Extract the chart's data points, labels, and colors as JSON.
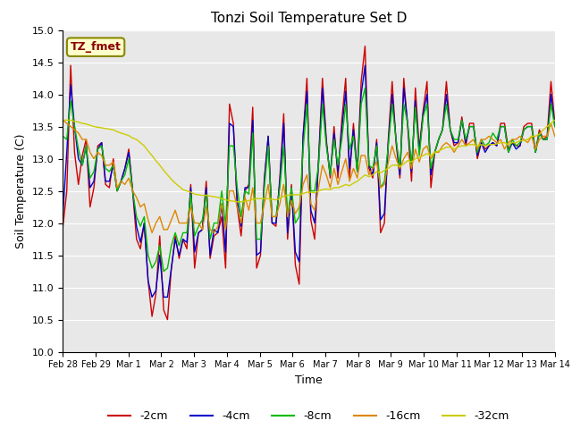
{
  "title": "Tonzi Soil Temperature Set D",
  "xlabel": "Time",
  "ylabel": "Soil Temperature (C)",
  "ylim": [
    10.0,
    15.0
  ],
  "yticks": [
    10.0,
    10.5,
    11.0,
    11.5,
    12.0,
    12.5,
    13.0,
    13.5,
    14.0,
    14.5,
    15.0
  ],
  "xtick_labels": [
    "Feb 28",
    "Feb 29",
    "Mar 1",
    "Mar 2",
    "Mar 3",
    "Mar 4",
    "Mar 5",
    "Mar 6",
    "Mar 7",
    "Mar 8",
    "Mar 9",
    "Mar 10",
    "Mar 11",
    "Mar 12",
    "Mar 13",
    "Mar 14"
  ],
  "colors": {
    "-2cm": "#cc0000",
    "-4cm": "#0000cc",
    "-8cm": "#00bb00",
    "-16cm": "#dd8800",
    "-32cm": "#cccc00"
  },
  "legend_label": "TZ_fmet",
  "plot_bg": "#e8e8e8",
  "fig_bg": "#ffffff",
  "n_days": 16,
  "pts_per_day": 8,
  "series": {
    "-2cm": [
      11.95,
      12.5,
      14.45,
      13.1,
      12.6,
      13.05,
      13.3,
      12.25,
      12.55,
      13.2,
      13.25,
      12.6,
      12.55,
      13.0,
      12.5,
      12.65,
      12.85,
      13.15,
      12.5,
      11.75,
      11.6,
      12.0,
      11.1,
      10.55,
      10.9,
      11.8,
      10.65,
      10.5,
      11.3,
      11.8,
      11.45,
      11.75,
      11.6,
      12.6,
      11.3,
      11.85,
      11.9,
      12.65,
      11.45,
      11.8,
      11.85,
      12.1,
      11.3,
      13.85,
      13.55,
      12.25,
      11.8,
      12.5,
      12.6,
      13.8,
      11.3,
      11.5,
      12.7,
      13.35,
      12.0,
      11.95,
      12.7,
      13.7,
      11.75,
      12.6,
      11.35,
      11.05,
      13.35,
      14.25,
      12.05,
      11.75,
      13.0,
      14.25,
      13.3,
      12.7,
      13.5,
      12.7,
      13.6,
      14.25,
      12.7,
      13.55,
      12.8,
      14.2,
      14.75,
      12.85,
      12.7,
      13.3,
      11.85,
      12.0,
      13.3,
      14.2,
      13.25,
      12.7,
      14.25,
      13.5,
      12.65,
      14.1,
      13.15,
      13.75,
      14.2,
      12.55,
      13.1,
      13.3,
      13.45,
      14.2,
      13.45,
      13.2,
      13.25,
      13.65,
      13.2,
      13.55,
      13.55,
      13.0,
      13.25,
      13.15,
      13.2,
      13.25,
      13.2,
      13.55,
      13.55,
      13.15,
      13.25,
      13.2,
      13.2,
      13.5,
      13.55,
      13.55,
      13.1,
      13.45,
      13.3,
      13.35,
      14.2,
      13.55
    ],
    "-4cm": [
      12.15,
      13.1,
      14.15,
      13.5,
      13.0,
      12.9,
      13.2,
      12.55,
      12.65,
      13.15,
      13.25,
      12.65,
      12.65,
      12.9,
      12.5,
      12.65,
      12.85,
      13.1,
      12.5,
      11.95,
      11.7,
      12.0,
      11.1,
      10.85,
      10.95,
      11.5,
      10.85,
      10.85,
      11.3,
      11.75,
      11.5,
      11.75,
      11.7,
      12.55,
      11.55,
      11.85,
      11.9,
      12.55,
      11.5,
      11.9,
      11.85,
      12.3,
      11.55,
      13.55,
      13.5,
      12.35,
      11.95,
      12.55,
      12.55,
      13.6,
      11.5,
      11.55,
      12.65,
      13.35,
      12.0,
      12.0,
      12.65,
      13.55,
      11.85,
      12.55,
      11.55,
      11.4,
      13.35,
      14.05,
      12.2,
      12.0,
      12.95,
      14.1,
      13.25,
      12.75,
      13.4,
      12.8,
      13.45,
      14.05,
      12.85,
      13.45,
      12.8,
      14.0,
      14.45,
      12.9,
      12.75,
      13.25,
      12.05,
      12.15,
      13.25,
      14.0,
      13.3,
      12.75,
      14.1,
      13.55,
      12.8,
      13.9,
      13.1,
      13.7,
      14.0,
      12.75,
      13.1,
      13.3,
      13.45,
      14.0,
      13.45,
      13.25,
      13.25,
      13.6,
      13.25,
      13.5,
      13.5,
      13.05,
      13.25,
      13.1,
      13.2,
      13.25,
      13.2,
      13.5,
      13.5,
      13.1,
      13.25,
      13.15,
      13.2,
      13.45,
      13.5,
      13.5,
      13.1,
      13.4,
      13.3,
      13.3,
      14.0,
      13.5
    ],
    "-8cm": [
      13.35,
      13.3,
      13.9,
      13.5,
      13.15,
      12.9,
      13.2,
      12.7,
      12.8,
      13.15,
      13.2,
      12.85,
      12.8,
      12.9,
      12.5,
      12.65,
      12.75,
      13.0,
      12.5,
      12.1,
      11.95,
      12.1,
      11.5,
      11.3,
      11.4,
      11.65,
      11.25,
      11.3,
      11.65,
      11.85,
      11.65,
      11.85,
      11.85,
      12.45,
      11.8,
      11.95,
      12.05,
      12.45,
      11.75,
      12.0,
      12.0,
      12.5,
      11.95,
      13.2,
      13.2,
      12.55,
      12.1,
      12.5,
      12.45,
      13.4,
      11.75,
      11.75,
      12.55,
      13.2,
      12.1,
      12.1,
      12.55,
      13.2,
      12.1,
      12.55,
      12.0,
      12.1,
      13.15,
      13.85,
      12.5,
      12.5,
      12.9,
      13.85,
      13.2,
      12.75,
      13.3,
      12.9,
      13.3,
      13.85,
      13.15,
      13.35,
      12.8,
      13.85,
      14.1,
      12.9,
      12.85,
      13.2,
      12.55,
      12.65,
      13.2,
      13.85,
      13.3,
      12.85,
      13.85,
      13.55,
      12.9,
      13.8,
      13.05,
      13.65,
      13.85,
      12.85,
      13.1,
      13.3,
      13.45,
      13.85,
      13.45,
      13.3,
      13.3,
      13.6,
      13.3,
      13.5,
      13.5,
      13.1,
      13.3,
      13.2,
      13.25,
      13.4,
      13.3,
      13.5,
      13.5,
      13.1,
      13.3,
      13.2,
      13.25,
      13.45,
      13.5,
      13.5,
      13.1,
      13.4,
      13.3,
      13.3,
      13.85,
      13.5
    ],
    "-16cm": [
      13.6,
      13.55,
      13.5,
      13.45,
      13.4,
      13.3,
      13.3,
      13.1,
      13.0,
      13.1,
      13.05,
      12.9,
      12.9,
      12.95,
      12.55,
      12.65,
      12.6,
      12.7,
      12.5,
      12.4,
      12.25,
      12.3,
      12.05,
      11.85,
      12.0,
      12.1,
      11.9,
      11.9,
      12.05,
      12.2,
      12.0,
      12.0,
      12.0,
      12.25,
      12.0,
      12.0,
      11.9,
      12.25,
      11.9,
      11.85,
      11.95,
      12.3,
      11.9,
      12.5,
      12.5,
      12.25,
      12.0,
      12.4,
      12.2,
      12.55,
      12.0,
      12.0,
      12.3,
      12.6,
      12.1,
      12.1,
      12.3,
      12.6,
      12.1,
      12.35,
      12.15,
      12.25,
      12.6,
      12.75,
      12.3,
      12.2,
      12.55,
      12.9,
      12.75,
      12.55,
      12.85,
      12.6,
      12.8,
      13.0,
      12.65,
      12.85,
      12.7,
      13.05,
      13.05,
      12.75,
      12.85,
      12.95,
      12.55,
      12.6,
      12.95,
      13.2,
      13.0,
      12.85,
      13.0,
      13.1,
      12.85,
      13.15,
      12.95,
      13.15,
      13.2,
      13.0,
      13.1,
      13.1,
      13.2,
      13.25,
      13.2,
      13.1,
      13.2,
      13.3,
      13.2,
      13.25,
      13.3,
      13.15,
      13.3,
      13.3,
      13.35,
      13.3,
      13.25,
      13.3,
      13.15,
      13.25,
      13.3,
      13.3,
      13.35,
      13.3,
      13.25,
      13.35,
      13.15,
      13.3,
      13.35,
      13.35,
      13.55,
      13.35
    ],
    "-32cm": [
      13.6,
      13.6,
      13.6,
      13.58,
      13.57,
      13.55,
      13.54,
      13.52,
      13.5,
      13.49,
      13.48,
      13.47,
      13.46,
      13.45,
      13.42,
      13.4,
      13.38,
      13.36,
      13.32,
      13.3,
      13.25,
      13.2,
      13.12,
      13.05,
      12.97,
      12.9,
      12.82,
      12.75,
      12.68,
      12.62,
      12.57,
      12.52,
      12.5,
      12.48,
      12.45,
      12.44,
      12.43,
      12.43,
      12.42,
      12.41,
      12.4,
      12.38,
      12.36,
      12.35,
      12.34,
      12.33,
      12.33,
      12.34,
      12.35,
      12.37,
      12.38,
      12.38,
      12.38,
      12.38,
      12.37,
      12.36,
      12.38,
      12.42,
      12.43,
      12.44,
      12.44,
      12.44,
      12.46,
      12.48,
      12.48,
      12.47,
      12.5,
      12.52,
      12.53,
      12.52,
      12.55,
      12.55,
      12.57,
      12.6,
      12.58,
      12.62,
      12.65,
      12.7,
      12.75,
      12.72,
      12.75,
      12.8,
      12.78,
      12.82,
      12.85,
      12.9,
      12.9,
      12.88,
      12.92,
      12.97,
      12.95,
      13.0,
      13.02,
      13.05,
      13.08,
      13.05,
      13.1,
      13.12,
      13.15,
      13.18,
      13.18,
      13.15,
      13.18,
      13.2,
      13.2,
      13.22,
      13.22,
      13.2,
      13.22,
      13.2,
      13.22,
      13.22,
      13.23,
      13.25,
      13.25,
      13.22,
      13.25,
      13.25,
      13.28,
      13.28,
      13.3,
      13.35,
      13.35,
      13.38,
      13.45,
      13.5,
      13.55,
      13.6
    ]
  }
}
